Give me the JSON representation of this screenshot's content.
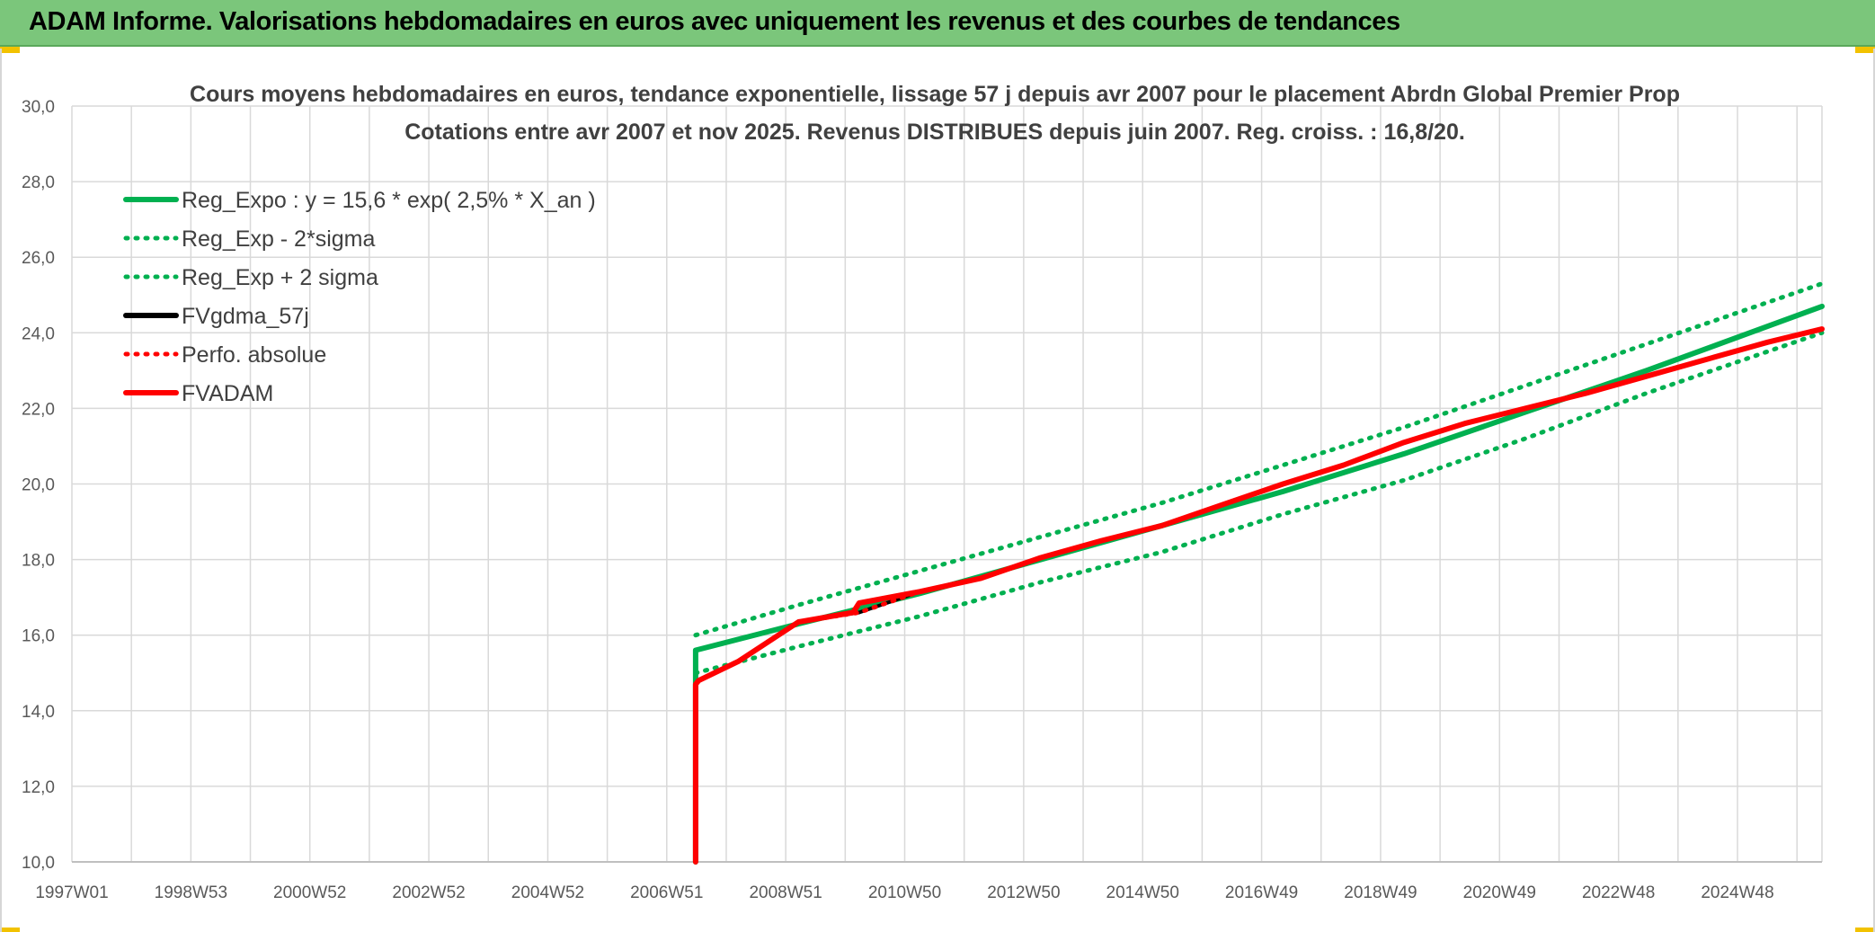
{
  "header": {
    "title": "ADAM Informe. Valorisations hebdomadaires en euros avec uniquement les revenus et des courbes de tendances"
  },
  "colors": {
    "header_bg": "#7bc67b",
    "accent_yellow": "#f2c200",
    "green": "#00b050",
    "red": "#ff0000",
    "black": "#000000"
  },
  "chart_data": {
    "type": "line",
    "title": "Cours moyens hebdomadaires en euros, tendance exponentielle, lissage 57 j depuis avr 2007 pour le placement Abrdn Global Premier Prop",
    "subtitle": "Cotations entre avr 2007 et nov 2025. Revenus DISTRIBUES depuis juin 2007. Reg. croiss. : 16,8/20.",
    "xlabel": "",
    "ylabel": "",
    "x_ticks": [
      "1997W01",
      "1998W53",
      "2000W52",
      "2002W52",
      "2004W52",
      "2006W51",
      "2008W51",
      "2010W50",
      "2012W50",
      "2014W50",
      "2016W49",
      "2018W49",
      "2020W49",
      "2022W48",
      "2024W48"
    ],
    "y_ticks": [
      "10,0",
      "12,0",
      "14,0",
      "16,0",
      "18,0",
      "20,0",
      "22,0",
      "24,0",
      "26,0",
      "28,0",
      "30,0"
    ],
    "ylim": [
      10,
      30
    ],
    "xlim": [
      1997.0,
      2025.9
    ],
    "grid": true,
    "legend_position": "top-left",
    "series": [
      {
        "name": "Reg_Expo : y = 15,6 * exp( 2,5% *  X_an )",
        "color": "#00b050",
        "style": "solid",
        "x": [
          2007.3,
          2007.3,
          2009.0,
          2011.0,
          2013.0,
          2015.0,
          2017.0,
          2019.0,
          2021.0,
          2023.0,
          2025.9
        ],
        "y": [
          10.0,
          15.6,
          16.3,
          17.1,
          18.0,
          18.9,
          19.8,
          20.8,
          21.9,
          23.0,
          24.7
        ]
      },
      {
        "name": "Reg_Exp - 2*sigma",
        "color": "#00b050",
        "style": "dotted",
        "x": [
          2007.3,
          2009.0,
          2011.0,
          2013.0,
          2015.0,
          2017.0,
          2019.0,
          2021.0,
          2023.0,
          2025.9
        ],
        "y": [
          15.0,
          15.7,
          16.5,
          17.4,
          18.2,
          19.2,
          20.1,
          21.2,
          22.4,
          24.0
        ]
      },
      {
        "name": "Reg_Exp + 2 sigma",
        "color": "#00b050",
        "style": "dotted",
        "x": [
          2007.3,
          2009.0,
          2011.0,
          2013.0,
          2015.0,
          2017.0,
          2019.0,
          2021.0,
          2023.0,
          2025.9
        ],
        "y": [
          16.0,
          16.8,
          17.7,
          18.6,
          19.5,
          20.5,
          21.5,
          22.6,
          23.7,
          25.3
        ]
      },
      {
        "name": "FVgdma_57j",
        "color": "#000000",
        "style": "solid",
        "x": [
          2007.3,
          2007.35,
          2008.0,
          2009.0,
          2010.0,
          2011.0,
          2012.0,
          2013.0,
          2014.0,
          2015.0,
          2016.0,
          2017.0,
          2018.0,
          2019.0,
          2020.0,
          2021.0,
          2022.0,
          2023.0,
          2024.0,
          2025.0,
          2025.9
        ],
        "y": [
          14.7,
          14.8,
          15.3,
          16.35,
          16.6,
          17.15,
          17.5,
          18.05,
          18.5,
          18.9,
          19.45,
          20.0,
          20.5,
          21.1,
          21.6,
          22.0,
          22.4,
          22.85,
          23.3,
          23.75,
          24.1
        ]
      },
      {
        "name": "Perfo. absolue",
        "color": "#ff0000",
        "style": "dotted",
        "x": [
          2007.3,
          2007.35,
          2008.0,
          2009.0,
          2010.0,
          2011.0,
          2012.0,
          2013.0,
          2014.0,
          2015.0,
          2016.0,
          2017.0,
          2018.0,
          2019.0,
          2020.0,
          2021.0,
          2022.0,
          2023.0,
          2024.0,
          2025.0,
          2025.9
        ],
        "y": [
          14.7,
          14.8,
          15.3,
          16.35,
          16.6,
          17.15,
          17.5,
          18.05,
          18.5,
          18.9,
          19.45,
          20.0,
          20.5,
          21.1,
          21.6,
          22.0,
          22.4,
          22.85,
          23.3,
          23.75,
          24.1
        ]
      },
      {
        "name": "FVADAM",
        "color": "#ff0000",
        "style": "solid",
        "x": [
          2007.3,
          2007.3,
          2007.35,
          2008.0,
          2009.0,
          2009.9,
          2010.0,
          2011.0,
          2012.0,
          2013.0,
          2014.0,
          2015.0,
          2016.0,
          2017.0,
          2018.0,
          2019.0,
          2020.0,
          2021.0,
          2022.0,
          2023.0,
          2024.0,
          2025.0,
          2025.9
        ],
        "y": [
          10.0,
          14.7,
          14.8,
          15.3,
          16.35,
          16.6,
          16.85,
          17.15,
          17.5,
          18.05,
          18.5,
          18.9,
          19.45,
          20.0,
          20.5,
          21.1,
          21.6,
          22.0,
          22.4,
          22.85,
          23.3,
          23.75,
          24.1
        ]
      }
    ]
  }
}
